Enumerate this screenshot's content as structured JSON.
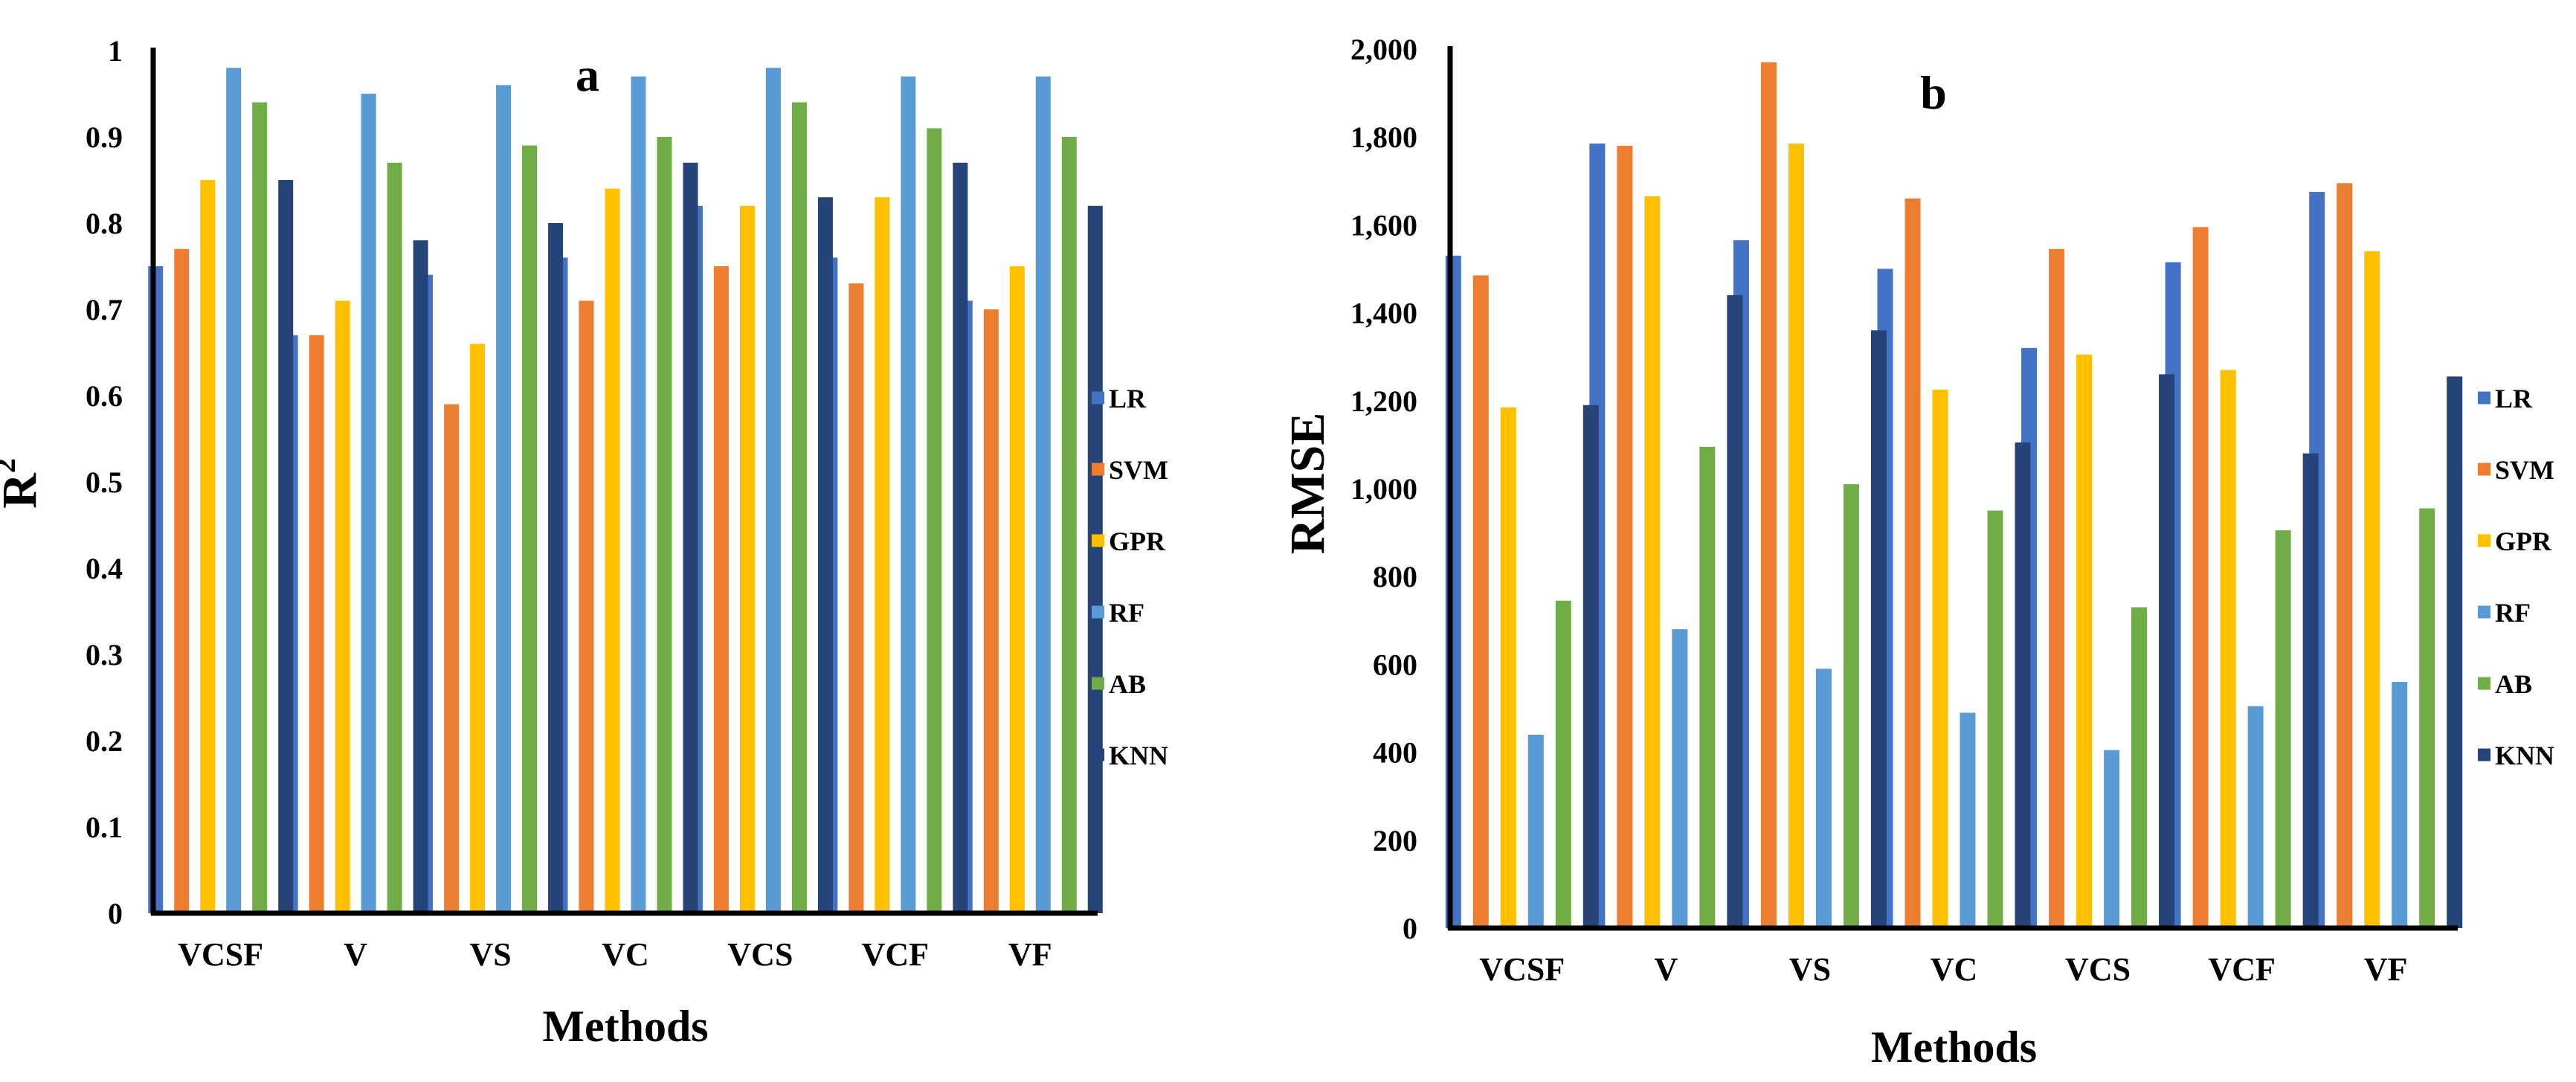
{
  "colors": {
    "LR": "#4472C4",
    "SVM": "#ED7D31",
    "GPR": "#FFC000",
    "RF": "#5B9BD5",
    "AB": "#70AD47",
    "KNN": "#264478"
  },
  "chart_data": [
    {
      "type": "bar",
      "panel_label": "a",
      "title": "",
      "xlabel": "Methods",
      "ylabel_base": "R",
      "ylabel_sup": "2",
      "ylim": [
        0,
        1
      ],
      "yticks": [
        0,
        0.1,
        0.2,
        0.3,
        0.4,
        0.5,
        0.6,
        0.7,
        0.8,
        0.9,
        1
      ],
      "ytick_labels": [
        "0",
        "0.1",
        "0.2",
        "0.3",
        "0.4",
        "0.5",
        "0.6",
        "0.7",
        "0.8",
        "0.9",
        "1"
      ],
      "grid": false,
      "legend": "right",
      "categories": [
        "VCSF",
        "V",
        "VS",
        "VC",
        "VCS",
        "VCF",
        "VF"
      ],
      "series": [
        {
          "name": "LR",
          "values": [
            0.75,
            0.67,
            0.74,
            0.76,
            0.82,
            0.76,
            0.71
          ]
        },
        {
          "name": "SVM",
          "values": [
            0.77,
            0.67,
            0.59,
            0.71,
            0.75,
            0.73,
            0.7
          ]
        },
        {
          "name": "GPR",
          "values": [
            0.85,
            0.71,
            0.66,
            0.84,
            0.82,
            0.83,
            0.75
          ]
        },
        {
          "name": "RF",
          "values": [
            0.98,
            0.95,
            0.96,
            0.97,
            0.98,
            0.97,
            0.97
          ]
        },
        {
          "name": "AB",
          "values": [
            0.94,
            0.87,
            0.89,
            0.9,
            0.94,
            0.91,
            0.9
          ]
        },
        {
          "name": "KNN",
          "values": [
            0.85,
            0.78,
            0.8,
            0.87,
            0.83,
            0.87,
            0.82
          ]
        }
      ]
    },
    {
      "type": "bar",
      "panel_label": "b",
      "title": "",
      "xlabel": "Methods",
      "ylabel_base": "RMSE",
      "ylabel_sup": "",
      "ylim": [
        0,
        2000
      ],
      "yticks": [
        0,
        200,
        400,
        600,
        800,
        1000,
        1200,
        1400,
        1600,
        1800,
        2000
      ],
      "ytick_labels": [
        "0",
        "200",
        "400",
        "600",
        "800",
        "1,000",
        "1,200",
        "1,400",
        "1,600",
        "1,800",
        "2,000"
      ],
      "grid": false,
      "legend": "right",
      "categories": [
        "VCSF",
        "V",
        "VS",
        "VC",
        "VCS",
        "VCF",
        "VF"
      ],
      "series": [
        {
          "name": "LR",
          "values": [
            1530,
            1785,
            1565,
            1500,
            1320,
            1515,
            1675
          ]
        },
        {
          "name": "SVM",
          "values": [
            1485,
            1780,
            1970,
            1660,
            1545,
            1595,
            1695
          ]
        },
        {
          "name": "GPR",
          "values": [
            1185,
            1665,
            1785,
            1225,
            1305,
            1270,
            1540
          ]
        },
        {
          "name": "RF",
          "values": [
            440,
            680,
            590,
            490,
            405,
            505,
            560
          ]
        },
        {
          "name": "AB",
          "values": [
            745,
            1095,
            1010,
            950,
            730,
            905,
            955
          ]
        },
        {
          "name": "KNN",
          "values": [
            1190,
            1440,
            1360,
            1105,
            1260,
            1080,
            1255
          ]
        }
      ]
    }
  ]
}
